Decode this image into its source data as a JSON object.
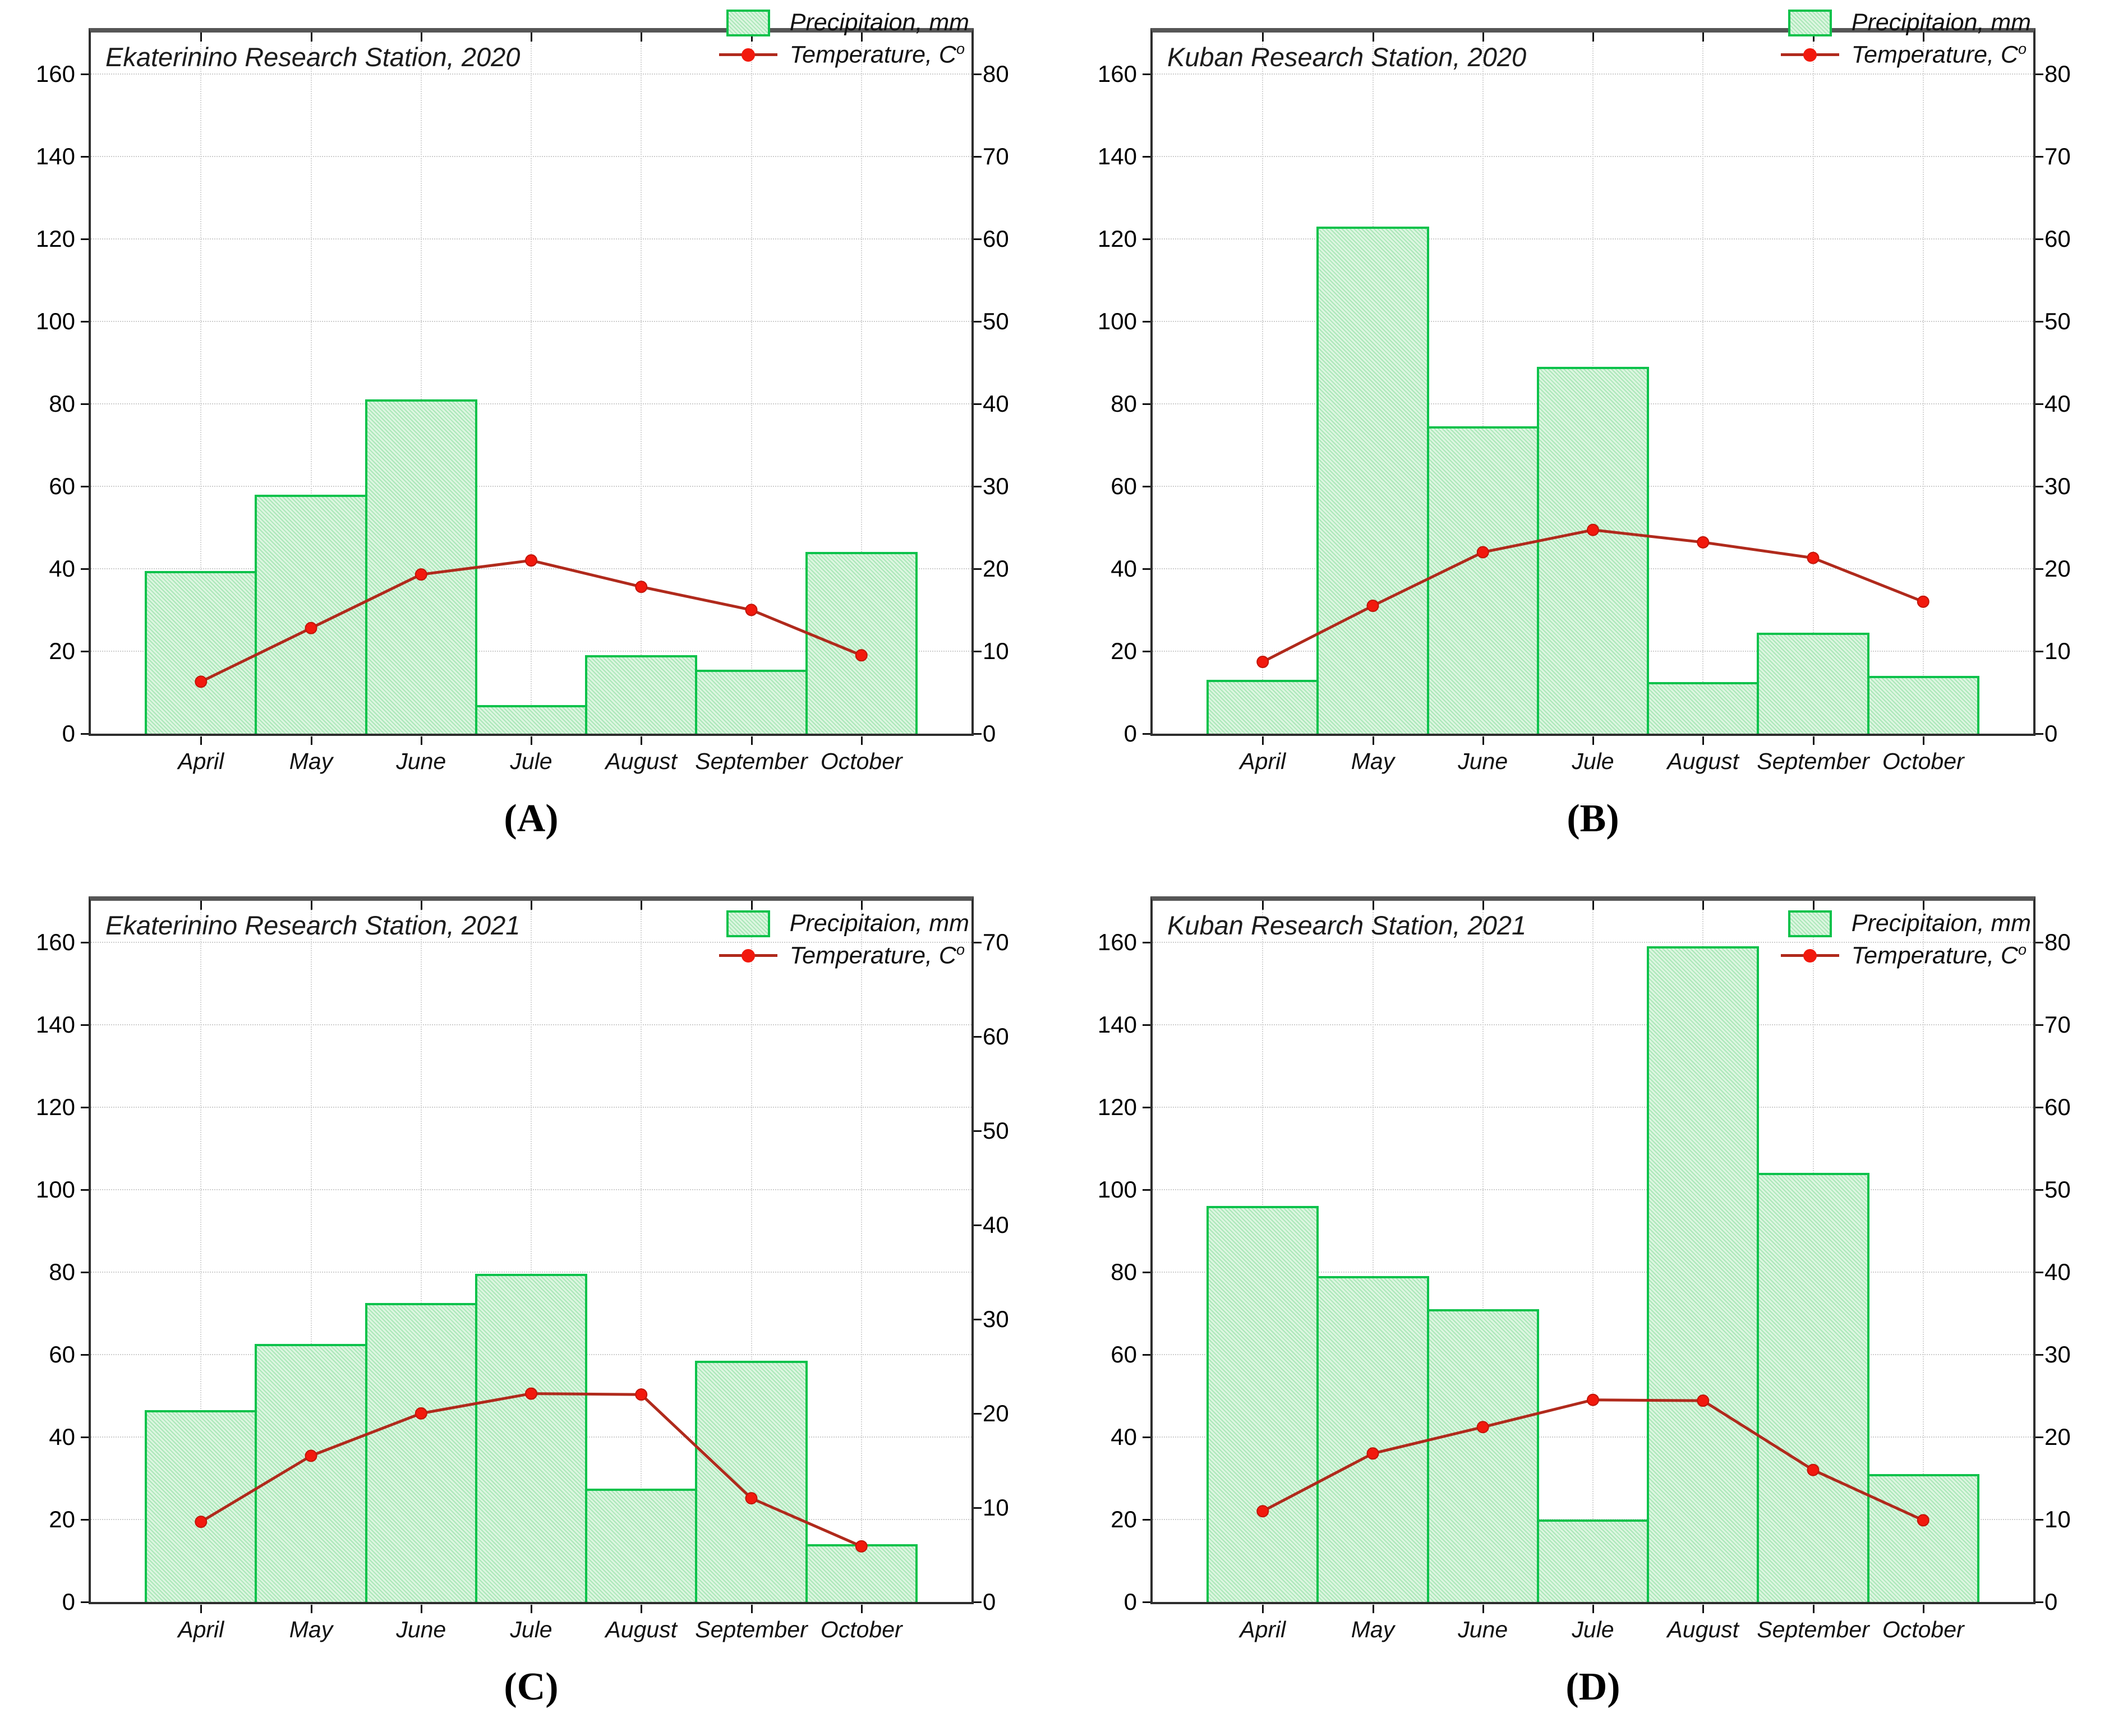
{
  "page": {
    "background": "#ffffff"
  },
  "legend": {
    "precipitation": "Precipitaion, mm",
    "temperature": "Temperature, C",
    "degree": "o"
  },
  "colors": {
    "bar_fill": "#dcf6e0",
    "bar_hatch": "#abe7b9",
    "bar_border": "#0cc24b",
    "line": "#b02a1c",
    "marker": "#f2190d",
    "grid": "#cdcdcd",
    "frame": "#2e2e2e",
    "text": "#111111"
  },
  "chart_data": [
    {
      "id": "A",
      "caption": "(A)",
      "title": "Ekaterinino Research Station, 2020",
      "type": "bar+line",
      "grid": true,
      "legend_position": "top-right-outside",
      "categories": [
        "April",
        "May",
        "June",
        "Jule",
        "August",
        "September",
        "October"
      ],
      "series": [
        {
          "name": "Precipitaion, mm",
          "type": "bar",
          "axis": "left",
          "unit": "mm",
          "values": [
            39.5,
            58,
            81,
            7,
            19,
            15.5,
            44
          ]
        },
        {
          "name": "Temperature, C°",
          "type": "line",
          "axis": "right",
          "unit": "°C",
          "values": [
            6.3,
            12.8,
            19.3,
            21,
            17.8,
            15,
            9.5
          ]
        }
      ],
      "left_axis": {
        "min": 0,
        "max": 160,
        "step": 20
      },
      "right_axis": {
        "min": 0,
        "max": 80,
        "step": 10
      }
    },
    {
      "id": "B",
      "caption": "(B)",
      "title": "Kuban Research Station, 2020",
      "type": "bar+line",
      "grid": true,
      "legend_position": "top-right-outside",
      "categories": [
        "April",
        "May",
        "June",
        "Jule",
        "August",
        "September",
        "October"
      ],
      "series": [
        {
          "name": "Precipitaion, mm",
          "type": "bar",
          "axis": "left",
          "unit": "mm",
          "values": [
            13,
            123,
            74.5,
            89,
            12.5,
            24.5,
            14
          ]
        },
        {
          "name": "Temperature, C°",
          "type": "line",
          "axis": "right",
          "unit": "°C",
          "values": [
            8.7,
            15.5,
            22,
            24.7,
            23.2,
            21.3,
            16
          ]
        }
      ],
      "left_axis": {
        "min": 0,
        "max": 160,
        "step": 20
      },
      "right_axis": {
        "min": 0,
        "max": 80,
        "step": 10
      }
    },
    {
      "id": "C",
      "caption": "(C)",
      "title": "Ekaterinino Research Station, 2021",
      "type": "bar+line",
      "grid": true,
      "legend_position": "top-right-inside",
      "categories": [
        "April",
        "May",
        "June",
        "Jule",
        "August",
        "September",
        "October"
      ],
      "series": [
        {
          "name": "Precipitaion, mm",
          "type": "bar",
          "axis": "left",
          "unit": "mm",
          "values": [
            46.5,
            62.5,
            72.5,
            79.5,
            27.5,
            58.5,
            14
          ]
        },
        {
          "name": "Temperature, C°",
          "type": "line",
          "axis": "right",
          "unit": "°C",
          "values": [
            8.5,
            15.5,
            20,
            22.1,
            22,
            11,
            5.9
          ]
        }
      ],
      "left_axis": {
        "min": 0,
        "max": 160,
        "step": 20
      },
      "right_axis": {
        "min": 0,
        "max": 70,
        "step": 10
      }
    },
    {
      "id": "D",
      "caption": "(D)",
      "title": "Kuban Research Station, 2021",
      "type": "bar+line",
      "grid": true,
      "legend_position": "top-right-inside",
      "categories": [
        "April",
        "May",
        "June",
        "Jule",
        "August",
        "September",
        "October"
      ],
      "series": [
        {
          "name": "Precipitaion, mm",
          "type": "bar",
          "axis": "left",
          "unit": "mm",
          "values": [
            96,
            79,
            71,
            20,
            159,
            104,
            31
          ]
        },
        {
          "name": "Temperature, C°",
          "type": "line",
          "axis": "right",
          "unit": "°C",
          "values": [
            11,
            18,
            21.2,
            24.5,
            24.4,
            16,
            9.9
          ]
        }
      ],
      "left_axis": {
        "min": 0,
        "max": 160,
        "step": 20
      },
      "right_axis": {
        "min": 0,
        "max": 80,
        "step": 10
      }
    }
  ]
}
